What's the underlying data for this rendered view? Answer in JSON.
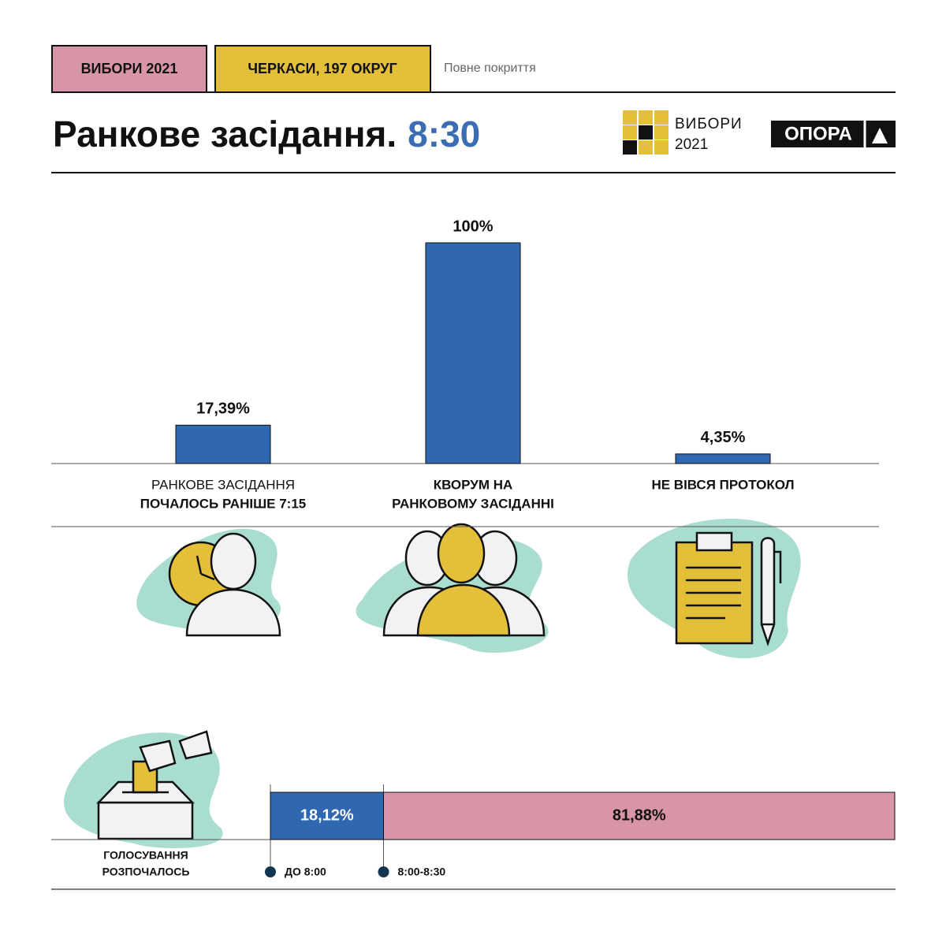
{
  "header": {
    "tags": [
      "ВИБОРИ 2021",
      "ЧЕРКАСИ, 197 ОКРУГ"
    ],
    "note": "Повне покриття",
    "title": "Ранкове засідання.",
    "time": "8:30",
    "logo": [
      "ВИБОРИ",
      "2021"
    ],
    "brand": "ОПОРА"
  },
  "chart_data": [
    {
      "type": "bar",
      "color": "#2f67b1",
      "categories": [
        [
          "РАНКОВЕ ЗАСІДАННЯ",
          "ПОЧАЛОСЬ РАНІШЕ 7:15"
        ],
        [
          "КВОРУМ НА",
          "РАНКОВОМУ ЗАСІДАННІ"
        ],
        [
          "НЕ ВІВСЯ ПРОТОКОЛ"
        ]
      ],
      "values": [
        17.39,
        100,
        4.35
      ],
      "value_labels": [
        "17,39%",
        "100%",
        "4,35%"
      ]
    },
    {
      "type": "stacked-bar",
      "categories": [
        [
          "ГОЛОСУВАННЯ",
          "РОЗПОЧАЛОСЬ"
        ]
      ],
      "series": [
        {
          "name": "ДО 8:00",
          "color": "#2f67b1",
          "values": [
            18.12
          ],
          "value_labels": [
            "18,12%"
          ]
        },
        {
          "name": "8:00-8:30",
          "color": "#d995a8",
          "values": [
            81.88
          ],
          "value_labels": [
            "81,88%"
          ]
        }
      ]
    }
  ]
}
